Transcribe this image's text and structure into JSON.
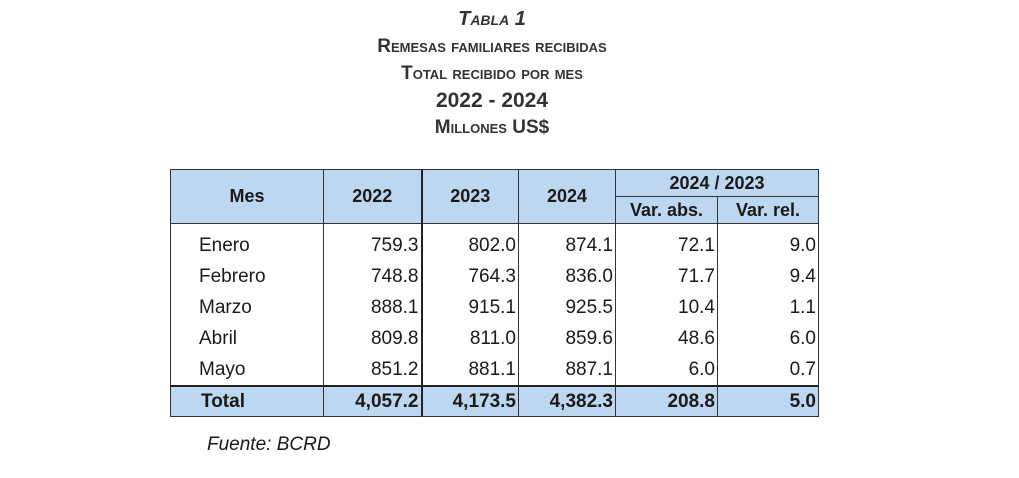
{
  "title": {
    "main": "Tabla 1",
    "line1": "Remesas familiares recibidas",
    "line2": "Total recibido por mes",
    "years": "2022 - 2024",
    "units": "Millones US$"
  },
  "table": {
    "header": {
      "mes": "Mes",
      "y2022": "2022",
      "y2023": "2023",
      "y2024": "2024",
      "group": "2024 / 2023",
      "var_abs": "Var. abs.",
      "var_rel": "Var. rel."
    },
    "rows": [
      {
        "mes": "Enero",
        "y2022": "759.3",
        "y2023": "802.0",
        "y2024": "874.1",
        "var_abs": "72.1",
        "var_rel": "9.0"
      },
      {
        "mes": "Febrero",
        "y2022": "748.8",
        "y2023": "764.3",
        "y2024": "836.0",
        "var_abs": "71.7",
        "var_rel": "9.4"
      },
      {
        "mes": "Marzo",
        "y2022": "888.1",
        "y2023": "915.1",
        "y2024": "925.5",
        "var_abs": "10.4",
        "var_rel": "1.1"
      },
      {
        "mes": "Abril",
        "y2022": "809.8",
        "y2023": "811.0",
        "y2024": "859.6",
        "var_abs": "48.6",
        "var_rel": "6.0"
      },
      {
        "mes": "Mayo",
        "y2022": "851.2",
        "y2023": "881.1",
        "y2024": "887.1",
        "var_abs": "6.0",
        "var_rel": "0.7"
      }
    ],
    "total": {
      "mes": "Total",
      "y2022": "4,057.2",
      "y2023": "4,173.5",
      "y2024": "4,382.3",
      "var_abs": "208.8",
      "var_rel": "5.0"
    }
  },
  "source": "Fuente: BCRD",
  "colors": {
    "header_bg": "#bcd7ef"
  }
}
